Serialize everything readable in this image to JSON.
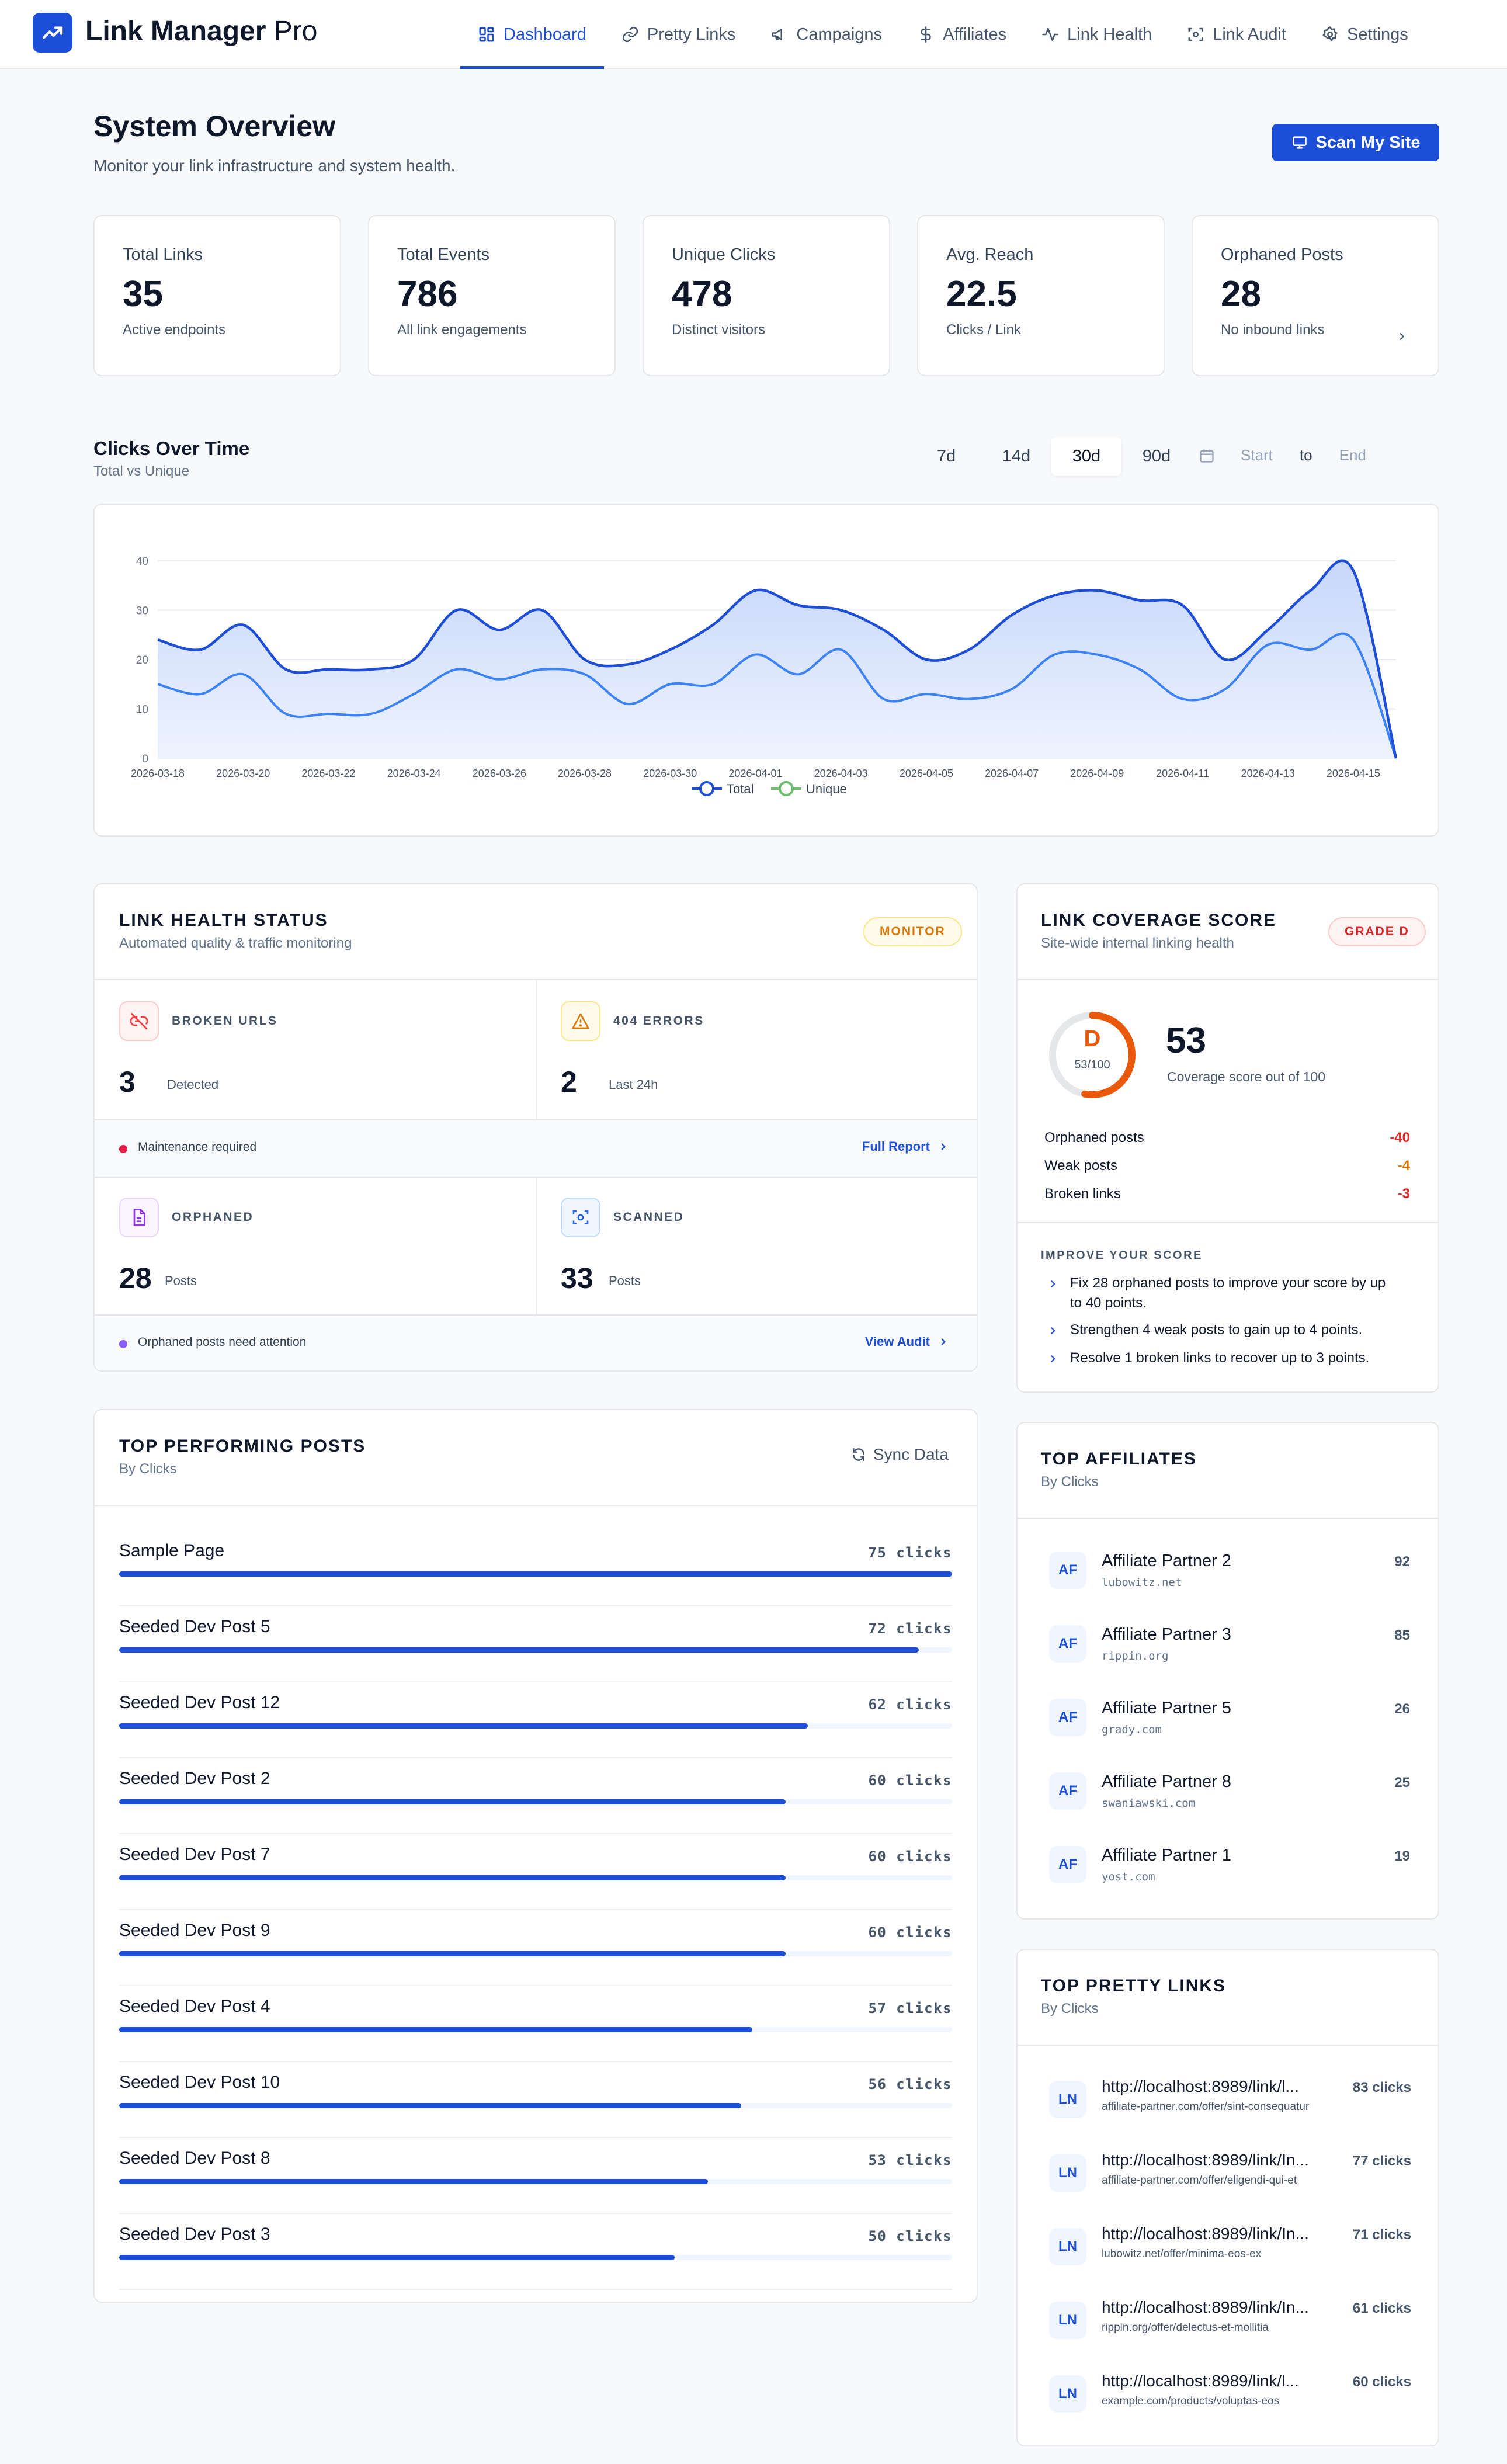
{
  "app": {
    "title_main": "Link Manager",
    "title_suffix": "Pro"
  },
  "nav": [
    {
      "label": "Dashboard",
      "icon": "dashboard-icon",
      "active": true
    },
    {
      "label": "Pretty Links",
      "icon": "link-icon"
    },
    {
      "label": "Campaigns",
      "icon": "megaphone-icon"
    },
    {
      "label": "Affiliates",
      "icon": "dollar-icon"
    },
    {
      "label": "Link Health",
      "icon": "activity-icon"
    },
    {
      "label": "Link Audit",
      "icon": "scan-icon"
    },
    {
      "label": "Settings",
      "icon": "gear-icon"
    }
  ],
  "header": {
    "title": "System Overview",
    "subtitle": "Monitor your link infrastructure and system health.",
    "scan_button": "Scan My Site"
  },
  "stats": [
    {
      "label": "Total Links",
      "value": "35",
      "note": "Active endpoints"
    },
    {
      "label": "Total Events",
      "value": "786",
      "note": "All link engagements"
    },
    {
      "label": "Unique Clicks",
      "value": "478",
      "note": "Distinct visitors"
    },
    {
      "label": "Avg. Reach",
      "value": "22.5",
      "note": "Clicks / Link"
    },
    {
      "label": "Orphaned Posts",
      "value": "28",
      "note": "No inbound links"
    }
  ],
  "clicks_chart": {
    "title": "Clicks Over Time",
    "subtitle": "Total vs Unique",
    "ranges": [
      "7d",
      "14d",
      "30d",
      "90d"
    ],
    "active_range": "30d",
    "start_placeholder": "Start",
    "to_label": "to",
    "end_placeholder": "End"
  },
  "chart_data": {
    "type": "area",
    "title": "",
    "xlabel": "",
    "ylabel": "",
    "ylim": [
      0,
      40
    ],
    "yticks": [
      0,
      10,
      20,
      30,
      40
    ],
    "grid": true,
    "legend_position": "bottom",
    "x_tick_labels": [
      "2026-03-18",
      "2026-03-20",
      "2026-03-22",
      "2026-03-24",
      "2026-03-26",
      "2026-03-28",
      "2026-03-30",
      "2026-04-01",
      "2026-04-03",
      "2026-04-05",
      "2026-04-07",
      "2026-04-09",
      "2026-04-11",
      "2026-04-13",
      "2026-04-15"
    ],
    "x": [
      "2026-03-18",
      "2026-03-19",
      "2026-03-20",
      "2026-03-21",
      "2026-03-22",
      "2026-03-23",
      "2026-03-24",
      "2026-03-25",
      "2026-03-26",
      "2026-03-27",
      "2026-03-28",
      "2026-03-29",
      "2026-03-30",
      "2026-03-31",
      "2026-04-01",
      "2026-04-02",
      "2026-04-03",
      "2026-04-04",
      "2026-04-05",
      "2026-04-06",
      "2026-04-07",
      "2026-04-08",
      "2026-04-09",
      "2026-04-10",
      "2026-04-11",
      "2026-04-12",
      "2026-04-13",
      "2026-04-14",
      "2026-04-15",
      "2026-04-16"
    ],
    "series": [
      {
        "name": "Total",
        "color": "#1d4ed8",
        "values": [
          24,
          22,
          27,
          18,
          18,
          18,
          20,
          30,
          26,
          30,
          20,
          19,
          22,
          27,
          34,
          31,
          30,
          26,
          20,
          22,
          29,
          33,
          34,
          32,
          31,
          20,
          26,
          34,
          38,
          0
        ]
      },
      {
        "name": "Unique",
        "color": "#3b82f6",
        "values": [
          15,
          13,
          17,
          9,
          9,
          9,
          13,
          18,
          16,
          18,
          17,
          11,
          15,
          15,
          21,
          17,
          22,
          12,
          13,
          12,
          14,
          21,
          21,
          18,
          12,
          14,
          23,
          22,
          24,
          0
        ]
      }
    ]
  },
  "health": {
    "title": "LINK HEALTH STATUS",
    "subtitle": "Automated quality & traffic monitoring",
    "badge": "MONITOR",
    "broken_label": "BROKEN URLS",
    "broken_value": "3",
    "broken_unit": "Detected",
    "errors_label": "404 ERRORS",
    "errors_value": "2",
    "errors_unit": "Last 24h",
    "maintenance_text": "Maintenance required",
    "full_report": "Full Report",
    "orphaned_label": "ORPHANED",
    "orphaned_value": "28",
    "orphaned_unit": "Posts",
    "scanned_label": "SCANNED",
    "scanned_value": "33",
    "scanned_unit": "Posts",
    "orphan_note": "Orphaned posts need attention",
    "view_audit": "View Audit"
  },
  "coverage": {
    "title": "LINK COVERAGE SCORE",
    "subtitle": "Site-wide internal linking health",
    "grade_badge": "GRADE D",
    "grade_letter": "D",
    "score_fraction": "53/100",
    "score": "53",
    "score_progress": 0.53,
    "score_caption": "Coverage score out of 100",
    "metrics": [
      {
        "label": "Orphaned posts",
        "value": "-40",
        "color": "#dc2626"
      },
      {
        "label": "Weak posts",
        "value": "-4",
        "color": "#d97706"
      },
      {
        "label": "Broken links",
        "value": "-3",
        "color": "#dc2626"
      }
    ],
    "improve_title": "IMPROVE YOUR SCORE",
    "tips": [
      "Fix 28 orphaned posts to improve your score by up to 40 points.",
      "Strengthen 4 weak posts to gain up to 4 points.",
      "Resolve 1 broken links to recover up to 3 points."
    ]
  },
  "top_posts": {
    "title": "TOP PERFORMING POSTS",
    "subtitle": "By Clicks",
    "sync_label": "Sync Data",
    "items": [
      {
        "name": "Sample Page",
        "clicks": "75 clicks",
        "value": 75
      },
      {
        "name": "Seeded Dev Post 5",
        "clicks": "72 clicks",
        "value": 72
      },
      {
        "name": "Seeded Dev Post 12",
        "clicks": "62 clicks",
        "value": 62
      },
      {
        "name": "Seeded Dev Post 2",
        "clicks": "60 clicks",
        "value": 60
      },
      {
        "name": "Seeded Dev Post 7",
        "clicks": "60 clicks",
        "value": 60
      },
      {
        "name": "Seeded Dev Post 9",
        "clicks": "60 clicks",
        "value": 60
      },
      {
        "name": "Seeded Dev Post 4",
        "clicks": "57 clicks",
        "value": 57
      },
      {
        "name": "Seeded Dev Post 10",
        "clicks": "56 clicks",
        "value": 56
      },
      {
        "name": "Seeded Dev Post 8",
        "clicks": "53 clicks",
        "value": 53
      },
      {
        "name": "Seeded Dev Post 3",
        "clicks": "50 clicks",
        "value": 50
      }
    ]
  },
  "top_affiliates": {
    "title": "TOP AFFILIATES",
    "subtitle": "By Clicks",
    "items": [
      {
        "badge": "AF",
        "name": "Affiliate Partner 2",
        "domain": "lubowitz.net",
        "count": "92"
      },
      {
        "badge": "AF",
        "name": "Affiliate Partner 3",
        "domain": "rippin.org",
        "count": "85"
      },
      {
        "badge": "AF",
        "name": "Affiliate Partner 5",
        "domain": "grady.com",
        "count": "26"
      },
      {
        "badge": "AF",
        "name": "Affiliate Partner 8",
        "domain": "swaniawski.com",
        "count": "25"
      },
      {
        "badge": "AF",
        "name": "Affiliate Partner 1",
        "domain": "yost.com",
        "count": "19"
      }
    ]
  },
  "top_pretty_links": {
    "title": "TOP PRETTY LINKS",
    "subtitle": "By Clicks",
    "items": [
      {
        "badge": "LN",
        "url": "http://localhost:8989/link/l...",
        "dest": "affiliate-partner.com/offer/sint-consequatur",
        "count": "83 clicks"
      },
      {
        "badge": "LN",
        "url": "http://localhost:8989/link/In...",
        "dest": "affiliate-partner.com/offer/eligendi-qui-et",
        "count": "77 clicks"
      },
      {
        "badge": "LN",
        "url": "http://localhost:8989/link/In...",
        "dest": "lubowitz.net/offer/minima-eos-ex",
        "count": "71 clicks"
      },
      {
        "badge": "LN",
        "url": "http://localhost:8989/link/In...",
        "dest": "rippin.org/offer/delectus-et-mollitia",
        "count": "61 clicks"
      },
      {
        "badge": "LN",
        "url": "http://localhost:8989/link/l...",
        "dest": "example.com/products/voluptas-eos",
        "count": "60 clicks"
      }
    ]
  }
}
